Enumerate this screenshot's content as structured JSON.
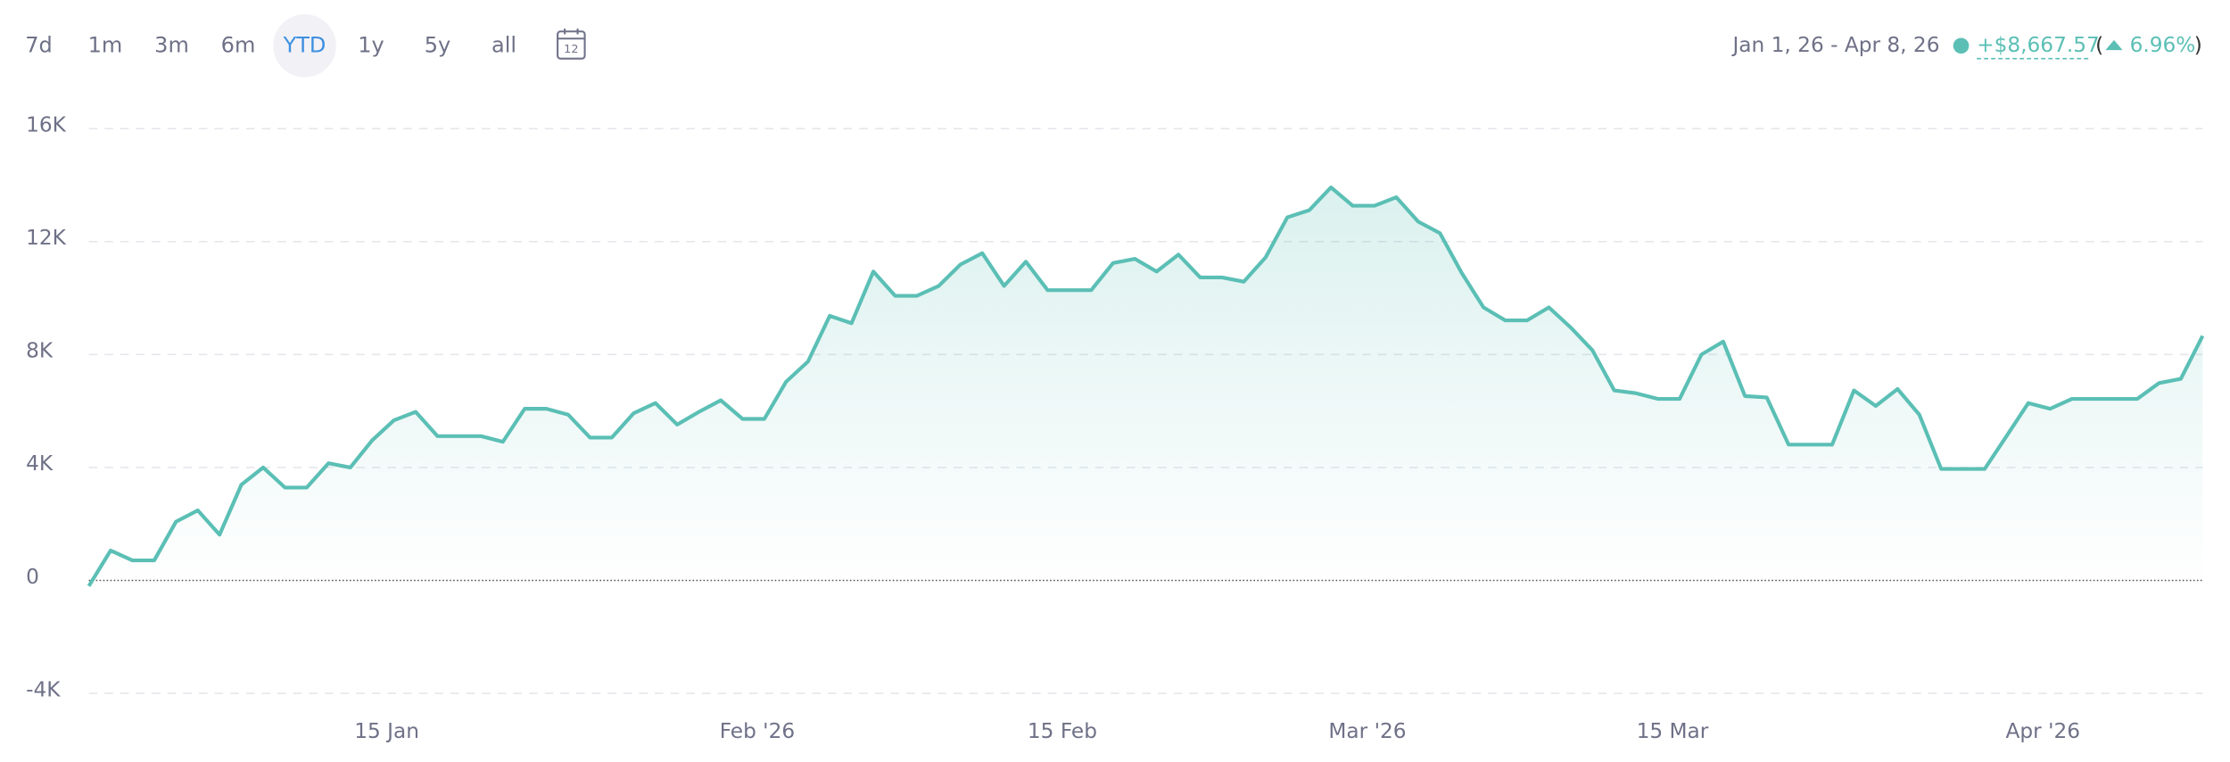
{
  "toolbar": {
    "ranges": [
      "7d",
      "1m",
      "3m",
      "6m",
      "YTD",
      "1y",
      "5y",
      "all"
    ],
    "active": 4,
    "calendar_day": "12"
  },
  "header": {
    "date_range": "Jan 1, 26 - Apr 8, 26",
    "change": "+$8,667.57",
    "brackets": [
      "(",
      ")"
    ],
    "change_pct": "6.96%"
  },
  "chart_data": {
    "type": "line",
    "x": [
      "2026-01-01",
      "2026-01-02",
      "2026-01-03",
      "2026-01-04",
      "2026-01-05",
      "2026-01-06",
      "2026-01-07",
      "2026-01-08",
      "2026-01-09",
      "2026-01-10",
      "2026-01-11",
      "2026-01-12",
      "2026-01-13",
      "2026-01-14",
      "2026-01-15",
      "2026-01-16",
      "2026-01-17",
      "2026-01-18",
      "2026-01-19",
      "2026-01-20",
      "2026-01-21",
      "2026-01-22",
      "2026-01-23",
      "2026-01-24",
      "2026-01-25",
      "2026-01-26",
      "2026-01-27",
      "2026-01-28",
      "2026-01-29",
      "2026-01-30",
      "2026-01-31",
      "2026-02-01",
      "2026-02-02",
      "2026-02-03",
      "2026-02-04",
      "2026-02-05",
      "2026-02-06",
      "2026-02-07",
      "2026-02-08",
      "2026-02-09",
      "2026-02-10",
      "2026-02-11",
      "2026-02-12",
      "2026-02-13",
      "2026-02-14",
      "2026-02-15",
      "2026-02-16",
      "2026-02-17",
      "2026-02-18",
      "2026-02-19",
      "2026-02-20",
      "2026-02-21",
      "2026-02-22",
      "2026-02-23",
      "2026-02-24",
      "2026-02-25",
      "2026-02-26",
      "2026-02-27",
      "2026-02-28",
      "2026-03-01",
      "2026-03-02",
      "2026-03-03",
      "2026-03-04",
      "2026-03-05",
      "2026-03-06",
      "2026-03-07",
      "2026-03-08",
      "2026-03-09",
      "2026-03-10",
      "2026-03-11",
      "2026-03-12",
      "2026-03-13",
      "2026-03-14",
      "2026-03-15",
      "2026-03-16",
      "2026-03-17",
      "2026-03-18",
      "2026-03-19",
      "2026-03-20",
      "2026-03-21",
      "2026-03-22",
      "2026-03-23",
      "2026-03-24",
      "2026-03-25",
      "2026-03-26",
      "2026-03-27",
      "2026-03-28",
      "2026-03-29",
      "2026-03-30",
      "2026-03-31",
      "2026-04-01",
      "2026-04-02",
      "2026-04-03",
      "2026-04-04",
      "2026-04-05",
      "2026-04-06",
      "2026-04-07",
      "2026-04-08"
    ],
    "series": [
      {
        "color": "#5bbfb5",
        "values": [
          -200,
          1060,
          710,
          710,
          2080,
          2480,
          1620,
          3390,
          4000,
          3290,
          3290,
          4150,
          4000,
          4960,
          5670,
          5970,
          5110,
          5110,
          5110,
          4910,
          6080,
          6080,
          5870,
          5060,
          5060,
          5920,
          6280,
          5520,
          5970,
          6380,
          5720,
          5720,
          7040,
          7750,
          9370,
          9110,
          10940,
          10080,
          10080,
          10430,
          11190,
          11590,
          10430,
          11290,
          10280,
          10280,
          10280,
          11240,
          11390,
          10940,
          11540,
          10730,
          10730,
          10580,
          11440,
          12860,
          13110,
          13920,
          13270,
          13270,
          13570,
          12710,
          12300,
          10890,
          9670,
          9210,
          9210,
          9670,
          8960,
          8150,
          6730,
          6630,
          6430,
          6430,
          8000,
          8460,
          6530,
          6480,
          4810,
          4810,
          4810,
          6730,
          6180,
          6780,
          5870,
          3950,
          3950,
          3950,
          5110,
          6280,
          6080,
          6430,
          6430,
          6430,
          6430,
          6990,
          7140,
          8660
        ]
      }
    ],
    "xlim": [
      "2026-01-01",
      "2026-04-08"
    ],
    "xticks": [
      {
        "value": "2026-01-15",
        "label": "15 Jan"
      },
      {
        "value": "2026-02-01",
        "label": "Feb '26"
      },
      {
        "value": "2026-02-15",
        "label": "15 Feb"
      },
      {
        "value": "2026-03-01",
        "label": "Mar '26"
      },
      {
        "value": "2026-03-15",
        "label": "15 Mar"
      },
      {
        "value": "2026-04-01",
        "label": "Apr '26"
      }
    ],
    "ylim": [
      -4000,
      16000
    ],
    "yticks": [
      {
        "value": -4000,
        "label": "-4K"
      },
      0,
      {
        "value": 4000,
        "label": "4K"
      },
      {
        "value": 8000,
        "label": "8K"
      },
      {
        "value": 12000,
        "label": "12K"
      },
      {
        "value": 16000,
        "label": "16K"
      }
    ],
    "grid": true
  }
}
